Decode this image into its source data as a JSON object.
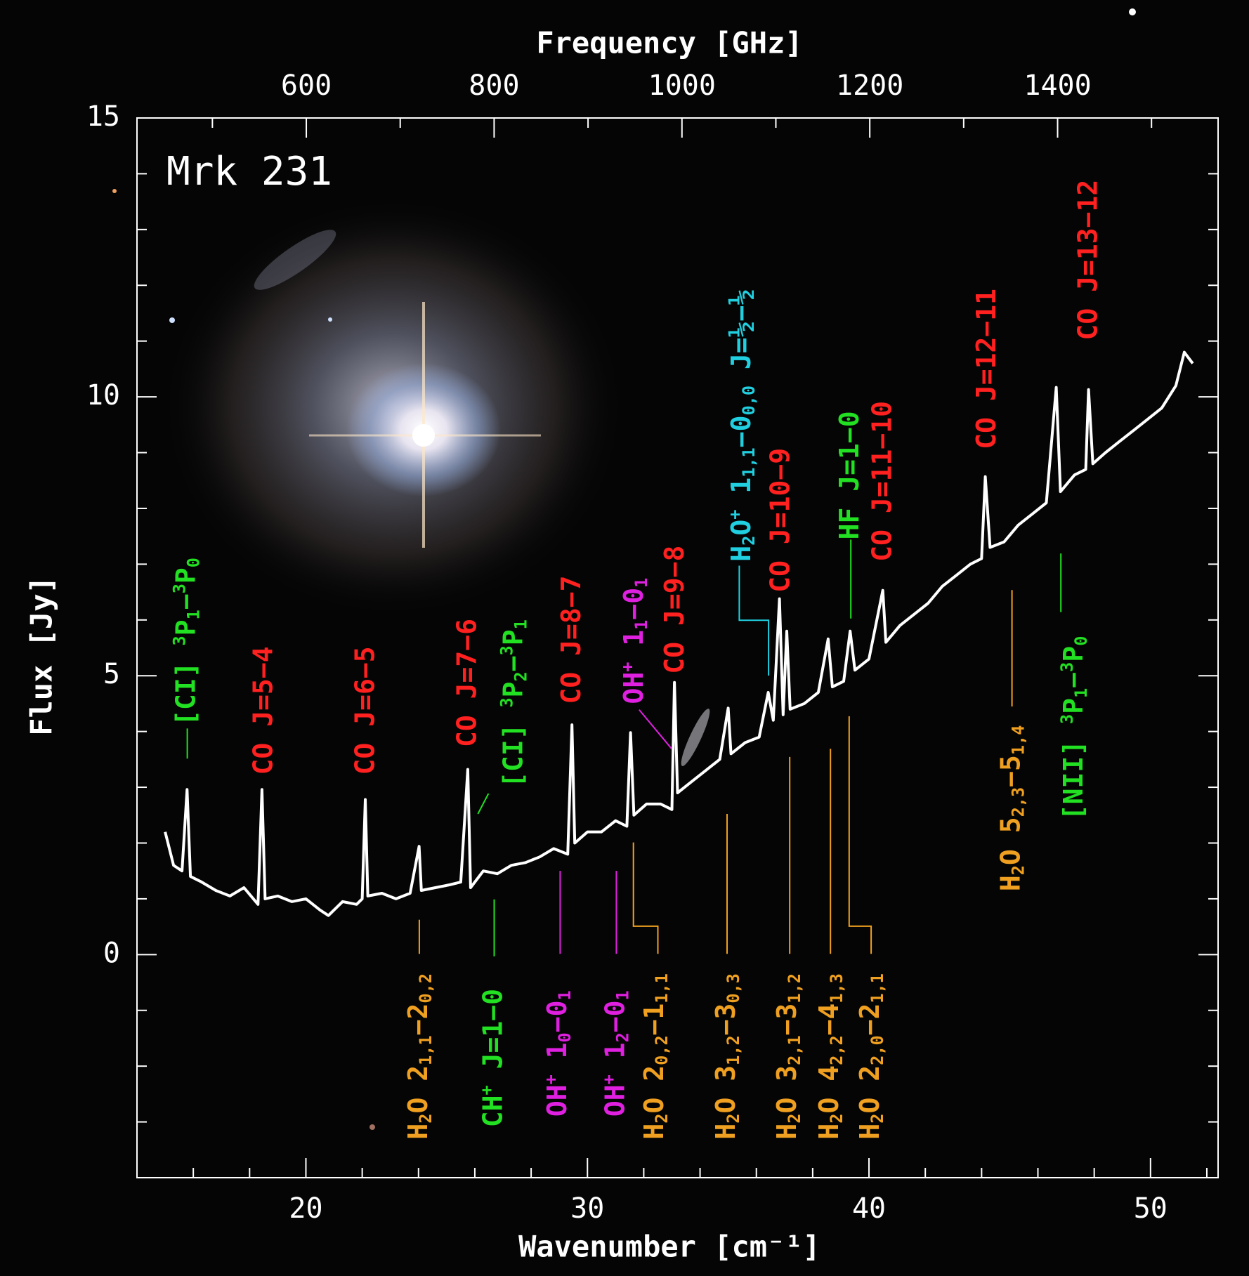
{
  "chart_data": {
    "type": "line",
    "title": "Mrk 231",
    "xlabel": "Wavenumber [cm⁻¹]",
    "ylabel": "Flux [Jy]",
    "x2label": "Frequency [GHz]",
    "color": "#ffffff",
    "xlim": [
      14,
      52.4
    ],
    "xticks": [
      20,
      30,
      40,
      50
    ],
    "xminorticks": [
      16,
      18,
      22,
      24,
      26,
      28,
      32,
      34,
      36,
      38,
      42,
      44,
      46,
      48,
      52
    ],
    "ylim": [
      -4,
      15
    ],
    "yticks": [
      0,
      5,
      10,
      15
    ],
    "yminorticks": [
      -3,
      -2,
      -1,
      1,
      2,
      3,
      4,
      6,
      7,
      8,
      9,
      11,
      12,
      13,
      14
    ],
    "x2lim": [
      419.7,
      1570.9
    ],
    "x2ticks": [
      600,
      800,
      1000,
      1200,
      1400
    ],
    "x2minorticks": [
      500,
      700,
      900,
      1100,
      1300,
      1500
    ],
    "x": [
      15.0,
      15.3,
      15.6,
      15.78,
      15.9,
      16.3,
      16.8,
      17.3,
      17.8,
      18.3,
      18.44,
      18.55,
      19.0,
      19.5,
      20.0,
      20.5,
      20.8,
      21.3,
      21.8,
      22.0,
      22.11,
      22.2,
      22.7,
      23.2,
      23.7,
      24.02,
      24.1,
      24.6,
      25.1,
      25.5,
      25.75,
      25.85,
      26.3,
      26.8,
      27.3,
      27.8,
      28.3,
      28.8,
      29.3,
      29.45,
      29.55,
      30.0,
      30.5,
      31.0,
      31.4,
      31.53,
      31.65,
      32.1,
      32.6,
      33.0,
      33.09,
      33.2,
      33.7,
      34.2,
      34.7,
      35.0,
      35.1,
      35.6,
      36.1,
      36.42,
      36.6,
      36.82,
      36.95,
      37.08,
      37.2,
      37.7,
      38.2,
      38.55,
      38.7,
      39.1,
      39.33,
      39.5,
      40.0,
      40.49,
      40.6,
      41.1,
      41.6,
      42.1,
      42.6,
      43.1,
      43.6,
      44.0,
      44.13,
      44.3,
      44.8,
      45.3,
      45.8,
      46.3,
      46.65,
      46.8,
      47.3,
      47.7,
      47.8,
      47.95,
      48.4,
      48.9,
      49.4,
      49.9,
      50.4,
      50.9,
      51.2,
      51.5
    ],
    "values": [
      2.2,
      1.6,
      1.5,
      2.96,
      1.4,
      1.3,
      1.15,
      1.05,
      1.2,
      0.9,
      2.96,
      1.0,
      1.05,
      0.95,
      1.0,
      0.8,
      0.7,
      0.95,
      0.9,
      1.0,
      2.78,
      1.05,
      1.1,
      1.0,
      1.1,
      1.94,
      1.15,
      1.2,
      1.25,
      1.3,
      3.32,
      1.2,
      1.5,
      1.45,
      1.6,
      1.65,
      1.75,
      1.9,
      1.8,
      4.12,
      2.0,
      2.2,
      2.2,
      2.4,
      2.3,
      3.98,
      2.5,
      2.7,
      2.7,
      2.6,
      4.88,
      2.9,
      3.1,
      3.3,
      3.5,
      4.42,
      3.6,
      3.8,
      3.9,
      4.7,
      4.2,
      6.38,
      4.3,
      5.8,
      4.4,
      4.5,
      4.7,
      5.66,
      4.8,
      4.9,
      5.8,
      5.1,
      5.3,
      6.53,
      5.6,
      5.9,
      6.1,
      6.3,
      6.6,
      6.8,
      7.0,
      7.1,
      8.57,
      7.3,
      7.4,
      7.7,
      7.9,
      8.1,
      10.17,
      8.3,
      8.6,
      8.7,
      10.13,
      8.8,
      9.0,
      9.2,
      9.4,
      9.6,
      9.8,
      10.2,
      10.8,
      10.6
    ],
    "annotations": [
      {
        "text": "[CI] ^{3}P_{1}−^{3}P_{0}",
        "color": "#22e022"
      },
      {
        "text": "CO J=5−4",
        "color": "#ff2020"
      },
      {
        "text": "CO J=6−5",
        "color": "#ff2020"
      },
      {
        "text": "CO J=7−6",
        "color": "#ff2020"
      },
      {
        "text": "[CI] ^{3}P_{2}−^{3}P_{1}",
        "color": "#22e022"
      },
      {
        "text": "CO J=8−7",
        "color": "#ff2020"
      },
      {
        "text": "OH^{+} 1_{1}−0_{1}",
        "color": "#e020e0"
      },
      {
        "text": "CO J=9−8",
        "color": "#ff2020"
      },
      {
        "text": "H_{2}O^{+} 1_{1,1}−0_{0,0} J=½−½",
        "color": "#20d0e0"
      },
      {
        "text": "CO J=10−9",
        "color": "#ff2020"
      },
      {
        "text": "HF J=1−0",
        "color": "#22e022"
      },
      {
        "text": "CO J=11−10",
        "color": "#ff2020"
      },
      {
        "text": "CO J=12−11",
        "color": "#ff2020"
      },
      {
        "text": "CO J=13−12",
        "color": "#ff2020"
      },
      {
        "text": "H_{2}O 5_{2,3}−5_{1,4}",
        "color": "#f0a020"
      },
      {
        "text": "[NII] ^{3}P_{1}−^{3}P_{0}",
        "color": "#22e022"
      },
      {
        "text": "H_{2}O 2_{1,1}−2_{0,2}",
        "color": "#f0a020"
      },
      {
        "text": "CH^{+} J=1−0",
        "color": "#22e022"
      },
      {
        "text": "OH^{+} 1_{0}−0_{1}",
        "color": "#e020e0"
      },
      {
        "text": "OH^{+} 1_{2}−0_{1}",
        "color": "#e020e0"
      },
      {
        "text": "H_{2}O 2_{0,2}−1_{1,1}",
        "color": "#f0a020"
      },
      {
        "text": "H_{2}O 3_{1,2}−3_{0,3}",
        "color": "#f0a020"
      },
      {
        "text": "H_{2}O 3_{2,1}−3_{1,2}",
        "color": "#f0a020"
      },
      {
        "text": "H_{2}O 4_{2,2}−4_{1,3}",
        "color": "#f0a020"
      },
      {
        "text": "H_{2}O 2_{2,0}−2_{1,1}",
        "color": "#f0a020"
      }
    ]
  }
}
